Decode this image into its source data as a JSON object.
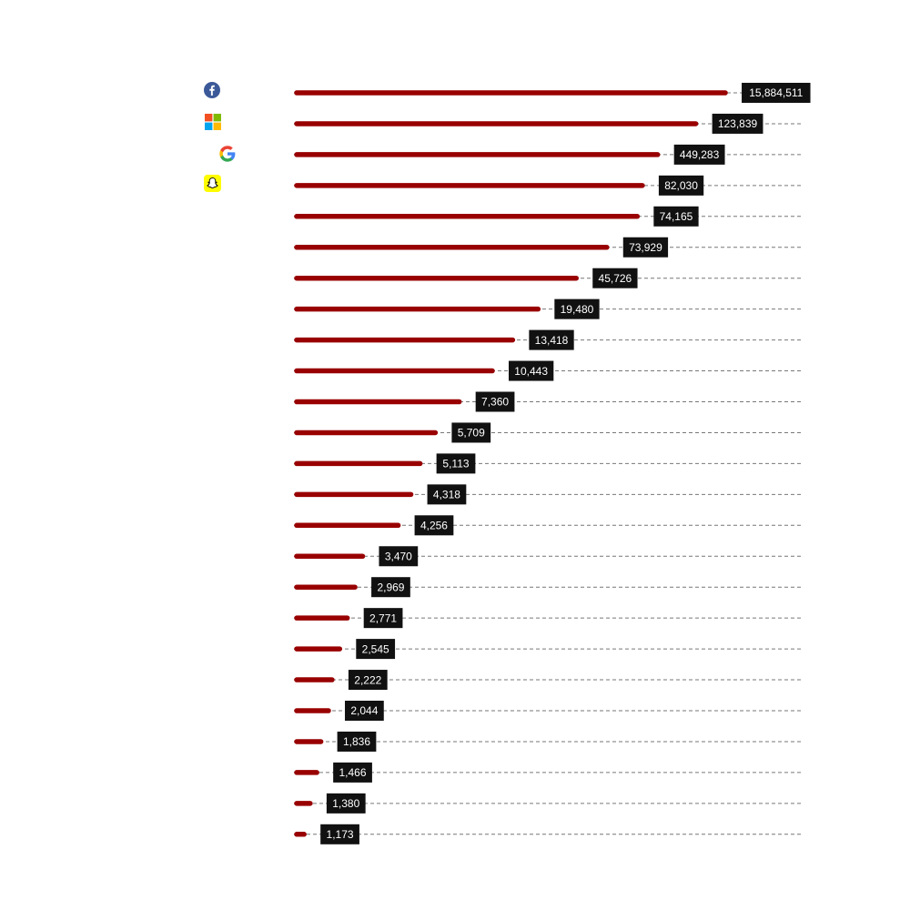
{
  "chart_data": {
    "type": "bar",
    "orientation": "horizontal",
    "bar_color": "#990000",
    "label_bg": "#111111",
    "label_color": "#ffffff",
    "title": "",
    "xlabel": "",
    "ylabel": "",
    "categories": [
      "",
      "",
      "",
      "",
      "",
      "",
      "",
      "",
      "",
      "",
      "",
      "",
      "",
      "",
      "",
      "",
      "",
      "",
      "",
      "",
      "",
      "",
      "",
      "",
      ""
    ],
    "logos": [
      {
        "icon": "facebook-logo",
        "color": "#3b5998"
      },
      {
        "icon": "microsoft-logo",
        "color": "#f25022"
      },
      {
        "icon": "google-logo",
        "color": "#4285f4"
      },
      {
        "icon": "snapchat-logo",
        "color": "#fffc00"
      }
    ],
    "values": [
      15884511,
      123839,
      449283,
      82030,
      74165,
      73929,
      45726,
      19480,
      13418,
      10443,
      7360,
      5709,
      5113,
      4318,
      4256,
      3470,
      2969,
      2771,
      2545,
      2222,
      2044,
      1836,
      1466,
      1380,
      1173
    ],
    "value_labels": [
      "15,884,511",
      "123,839",
      "449,283",
      "82,030",
      "74,165",
      "73,929",
      "45,726",
      "19,480",
      "13,418",
      "10,443",
      "7,360",
      "5,709",
      "5,113",
      "4,318",
      "4,256",
      "3,470",
      "2,969",
      "2,771",
      "2,545",
      "2,222",
      "2,044",
      "1,836",
      "1,466",
      "1,380",
      "1,173"
    ],
    "bar_fraction": [
      0.848,
      0.79,
      0.715,
      0.685,
      0.675,
      0.615,
      0.555,
      0.48,
      0.43,
      0.39,
      0.325,
      0.278,
      0.248,
      0.23,
      0.205,
      0.135,
      0.12,
      0.105,
      0.09,
      0.075,
      0.068,
      0.053,
      0.045,
      0.032,
      0.02
    ],
    "grid": "dashed guide lines to right edge",
    "legend": "none"
  }
}
